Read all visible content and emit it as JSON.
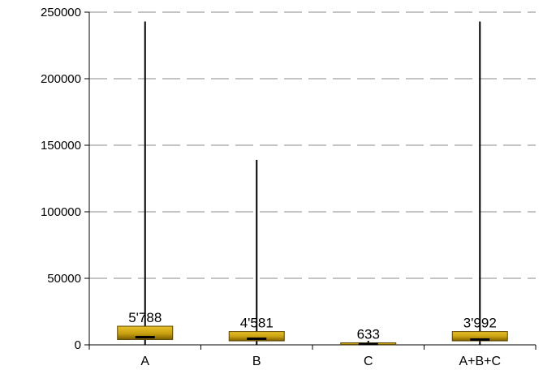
{
  "chart_data": {
    "type": "boxplot",
    "categories": [
      "A",
      "B",
      "C",
      "A+B+C"
    ],
    "series": [
      {
        "values": [
          {
            "min": 0,
            "q1": 4000,
            "median": 5788,
            "q3": 14000,
            "max": 243000
          },
          {
            "min": 0,
            "q1": 3000,
            "median": 4581,
            "q3": 10000,
            "max": 139000
          },
          {
            "min": 0,
            "q1": 200,
            "median": 633,
            "q3": 1500,
            "max": 3000
          },
          {
            "min": 0,
            "q1": 3000,
            "median": 3992,
            "q3": 10000,
            "max": 243000
          }
        ]
      }
    ],
    "median_labels": [
      "5'788",
      "4'581",
      "633",
      "3'992"
    ],
    "ylim": [
      0,
      250000
    ],
    "yticks": [
      0,
      50000,
      100000,
      150000,
      200000,
      250000
    ],
    "ytick_labels": [
      "0",
      "50000",
      "100000",
      "150000",
      "200000",
      "250000"
    ],
    "grid": "horizontal-dashed",
    "colors": {
      "box_top": "#e8c12a",
      "box_mid": "#c9a010",
      "box_bottom": "#7a5d00",
      "box_edge": "#5a4400",
      "grid": "#8a8a8a",
      "whisker": "#000000"
    },
    "title": "",
    "xlabel": "",
    "ylabel": ""
  }
}
